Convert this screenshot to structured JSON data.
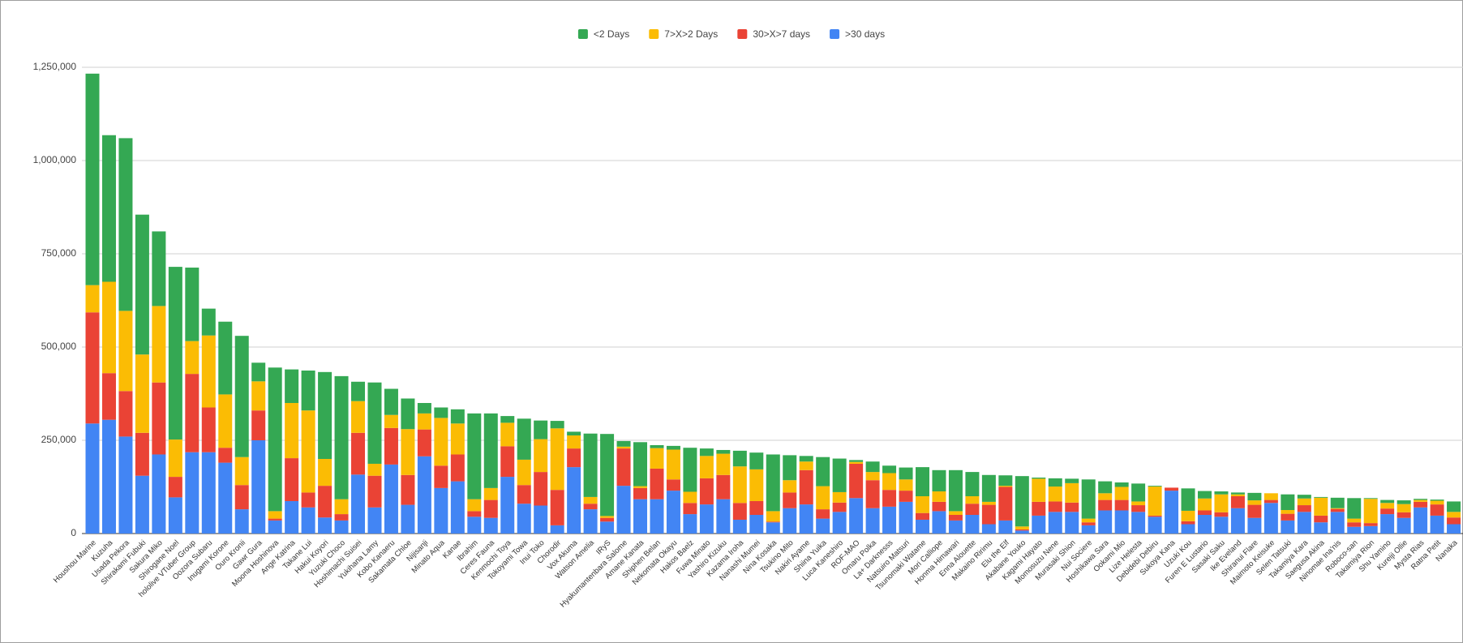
{
  "chart_data": {
    "type": "stacked_bar",
    "categories": [
      "Houshou Marine",
      "Kuzuha",
      "Usada Pekora",
      "Shirakami Fubuki",
      "Sakura Miko",
      "Shirogane Noel",
      "hololive VTuber Group",
      "Oozora Subaru",
      "Inugami Korone",
      "Ouro Kronii",
      "Gawr Gura",
      "Moona Hoshinova",
      "Ange Katrina",
      "Takane Lui",
      "Hakui Koyori",
      "Yuzuki Choco",
      "Hoshimachi Suisei",
      "Yukihana Lamy",
      "Kobo Kanaeru",
      "Sakamata Chloe",
      "Nijisanji",
      "Minato Aqua",
      "Kanae",
      "Ibrahim",
      "Ceres Fauna",
      "Kenmochi Toya",
      "Tokoyami Towa",
      "Inui Toko",
      "Chorodir",
      "Vox Akuma",
      "Watson Amelia",
      "IRyS",
      "Hyakumantenbara Salome",
      "Amane Kanata",
      "Shiphen Belan",
      "Nekomata Okayu",
      "Hakos Baelz",
      "Fuwa Minato",
      "Yashiro Kizuku",
      "Kazama Iroha",
      "Nanashi Mumei",
      "Nina Kosaka",
      "Tsukino Mito",
      "Nakiri Ayame",
      "Shiina Yuika",
      "Luca Kaneshiro",
      "ROF-MAO",
      "Omaru Polka",
      "La+ Darknesss",
      "Natsuiro Matsuri",
      "Tsunomaki Watame",
      "Mori Calliope",
      "Honma Himawari",
      "Enna Alouette",
      "Makaino Ririmu",
      "Elu the Elf",
      "Akabane Youko",
      "Kagami Hayato",
      "Momosuzu Nene",
      "Murasaki Shion",
      "Nui Sociere",
      "Hoshikawa Sara",
      "Ookami Mio",
      "Lize Helesta",
      "Debidebi Debiru",
      "Sukoya Kana",
      "Uzuki Kou",
      "Furen E Lustario",
      "Sasaki Saku",
      "Ike Eveland",
      "Shiranui Flare",
      "Maimoto Keisuke",
      "Selen Tatsuki",
      "Takamiya Kara",
      "Saegusa Akina",
      "Ninomae Ina'nis",
      "Roboco-san",
      "Takamiya Rion",
      "Shu Yamino",
      "Kureiji Ollie",
      "Mysta Rias",
      "Ratna Petit",
      "Nanaka"
    ],
    "series": [
      {
        "name": "<2 Days",
        "color": "#34a853",
        "values": [
          567000,
          393000,
          463000,
          375000,
          200000,
          463000,
          197000,
          72000,
          195000,
          325000,
          50000,
          385000,
          90000,
          107000,
          233000,
          330000,
          52000,
          218000,
          70000,
          82000,
          28000,
          28000,
          38000,
          230000,
          200000,
          18000,
          110000,
          50000,
          20000,
          10000,
          170000,
          220000,
          15000,
          118000,
          8000,
          10000,
          118000,
          20000,
          10000,
          42000,
          45000,
          152000,
          67000,
          15000,
          78000,
          90000,
          5000,
          28000,
          20000,
          32000,
          78000,
          57000,
          110000,
          65000,
          72000,
          28000,
          135000,
          3000,
          22000,
          12000,
          105000,
          32000,
          12000,
          48000,
          2000,
          0,
          60000,
          20000,
          8000,
          5000,
          20000,
          0,
          42000,
          10000,
          2000,
          28000,
          55000,
          2000,
          8000,
          10000,
          3000,
          3000,
          28000
        ]
      },
      {
        "name": "7>X>2 Days",
        "color": "#fbbc04",
        "values": [
          73000,
          245000,
          215000,
          210000,
          205000,
          100000,
          88000,
          193000,
          143000,
          75000,
          78000,
          20000,
          148000,
          220000,
          72000,
          40000,
          85000,
          32000,
          35000,
          123000,
          43000,
          128000,
          83000,
          32000,
          32000,
          63000,
          68000,
          88000,
          165000,
          35000,
          18000,
          5000,
          5000,
          5000,
          55000,
          80000,
          30000,
          60000,
          57000,
          98000,
          85000,
          28000,
          33000,
          23000,
          62000,
          28000,
          5000,
          22000,
          45000,
          30000,
          45000,
          28000,
          10000,
          20000,
          8000,
          3000,
          8000,
          62000,
          40000,
          52000,
          10000,
          18000,
          35000,
          10000,
          78000,
          0,
          28000,
          32000,
          48000,
          5000,
          12000,
          18000,
          10000,
          18000,
          48000,
          2000,
          10000,
          65000,
          15000,
          22000,
          5000,
          10000,
          15000
        ]
      },
      {
        "name": "30>X>7 days",
        "color": "#ea4335",
        "values": [
          298000,
          125000,
          122000,
          115000,
          193000,
          55000,
          210000,
          120000,
          40000,
          65000,
          80000,
          5000,
          115000,
          40000,
          85000,
          17000,
          112000,
          85000,
          98000,
          80000,
          72000,
          60000,
          72000,
          15000,
          48000,
          82000,
          50000,
          90000,
          95000,
          50000,
          15000,
          10000,
          100000,
          30000,
          82000,
          30000,
          30000,
          70000,
          65000,
          45000,
          37000,
          2000,
          42000,
          92000,
          25000,
          25000,
          92000,
          75000,
          45000,
          30000,
          18000,
          25000,
          15000,
          30000,
          52000,
          90000,
          3000,
          37000,
          28000,
          25000,
          8000,
          28000,
          28000,
          18000,
          3000,
          8000,
          8000,
          12000,
          12000,
          32000,
          35000,
          8000,
          18000,
          18000,
          18000,
          8000,
          12000,
          8000,
          15000,
          15000,
          15000,
          30000,
          18000
        ]
      },
      {
        "name": ">30 days",
        "color": "#4285f4",
        "values": [
          295000,
          305000,
          260000,
          155000,
          212000,
          97000,
          218000,
          218000,
          190000,
          65000,
          250000,
          35000,
          87000,
          70000,
          43000,
          35000,
          158000,
          70000,
          185000,
          77000,
          207000,
          122000,
          140000,
          45000,
          42000,
          152000,
          80000,
          75000,
          22000,
          178000,
          65000,
          32000,
          128000,
          92000,
          92000,
          115000,
          52000,
          78000,
          92000,
          37000,
          50000,
          30000,
          68000,
          78000,
          40000,
          58000,
          95000,
          68000,
          72000,
          85000,
          37000,
          60000,
          35000,
          50000,
          25000,
          35000,
          8000,
          48000,
          58000,
          58000,
          22000,
          62000,
          62000,
          58000,
          45000,
          115000,
          25000,
          50000,
          45000,
          68000,
          42000,
          82000,
          35000,
          58000,
          30000,
          58000,
          18000,
          20000,
          52000,
          42000,
          70000,
          48000,
          25000
        ]
      }
    ],
    "ylim": [
      0,
      1250000
    ],
    "yticks": [
      0,
      {
        "value": 250000,
        "label": "250,000"
      },
      {
        "value": 500000,
        "label": "500,000"
      },
      {
        "value": 750000,
        "label": "750,000"
      },
      {
        "value": 1000000,
        "label": "1,000,000"
      },
      {
        "value": 1250000,
        "label": "1,250,000"
      }
    ],
    "grid": true,
    "legend": "top"
  }
}
